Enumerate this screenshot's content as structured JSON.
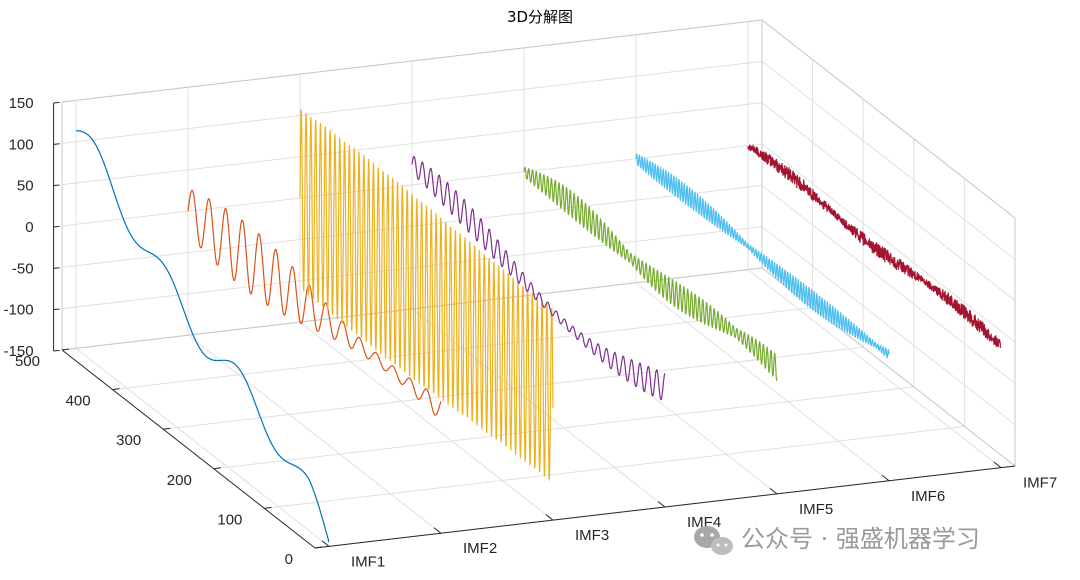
{
  "chart_data": {
    "type": "line",
    "title": "3D分解图",
    "z_ticks": [
      "150",
      "100",
      "50",
      "0",
      "-50",
      "-100",
      "-150"
    ],
    "y_ticks": [
      "500",
      "400",
      "300",
      "200",
      "100",
      "0"
    ],
    "categories": [
      "IMF1",
      "IMF2",
      "IMF3",
      "IMF4",
      "IMF5",
      "IMF6",
      "IMF7"
    ],
    "zlim": [
      -150,
      150
    ],
    "ylim": [
      0,
      500
    ],
    "grid": true,
    "series": [
      {
        "name": "IMF1",
        "color": "#0072BD",
        "description": "low-frequency undulating curve",
        "start_value": 105,
        "end_value": -148
      },
      {
        "name": "IMF2",
        "color": "#D95319",
        "description": "damped oscillation",
        "amplitude": 20
      },
      {
        "name": "IMF3",
        "color": "#EDB120",
        "description": "high-frequency large oscillation",
        "amplitude": 110
      },
      {
        "name": "IMF4",
        "color": "#7E2F8E",
        "description": "medium oscillation",
        "amplitude": 12
      },
      {
        "name": "IMF5",
        "color": "#77AC30",
        "description": "amplitude-modulated oscillation",
        "amplitude": 14
      },
      {
        "name": "IMF6",
        "color": "#4DBEEE",
        "description": "amplitude-modulated oscillation",
        "amplitude": 10
      },
      {
        "name": "IMF7",
        "color": "#A2142F",
        "description": "noisy trend",
        "amplitude": 6
      }
    ]
  },
  "watermark": {
    "text": "公众号 · 强盛机器学习",
    "icon": "wechat-icon"
  }
}
